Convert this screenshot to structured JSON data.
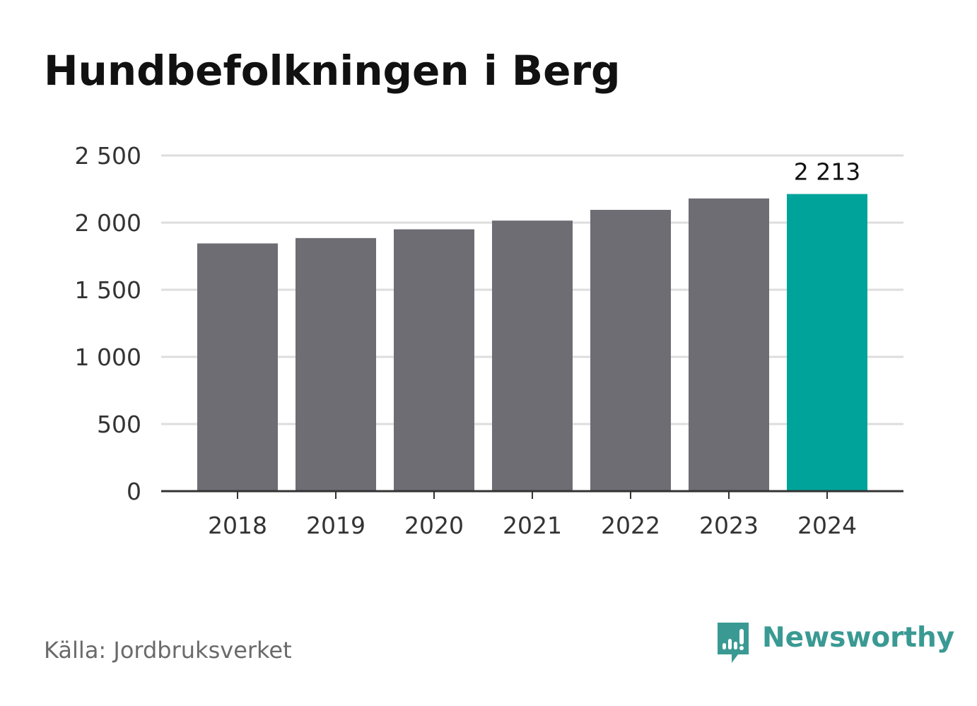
{
  "title": "Hundbefolkningen i Berg",
  "source": "Källa: Jordbruksverket",
  "brand": {
    "name": "Newsworthy",
    "icon": "newsworthy-logo-icon",
    "color": "#3a9a93"
  },
  "colors": {
    "bar": "#6e6d73",
    "highlight": "#00a39a",
    "grid": "#dddddd",
    "axis": "#333333"
  },
  "chart_data": {
    "type": "bar",
    "title": "Hundbefolkningen i Berg",
    "categories": [
      "2018",
      "2019",
      "2020",
      "2021",
      "2022",
      "2023",
      "2024"
    ],
    "values": [
      1845,
      1885,
      1950,
      2015,
      2095,
      2180,
      2213
    ],
    "highlight_index": 6,
    "data_labels": [
      {
        "index": 6,
        "text": "2 213"
      }
    ],
    "ylim": [
      0,
      2500
    ],
    "yticks": [
      0,
      500,
      1000,
      1500,
      2000,
      2500
    ],
    "ytick_labels": [
      "0",
      "500",
      "1 000",
      "1 500",
      "2 000",
      "2 500"
    ],
    "xlabel": "",
    "ylabel": "",
    "grid": true,
    "legend": "none"
  }
}
